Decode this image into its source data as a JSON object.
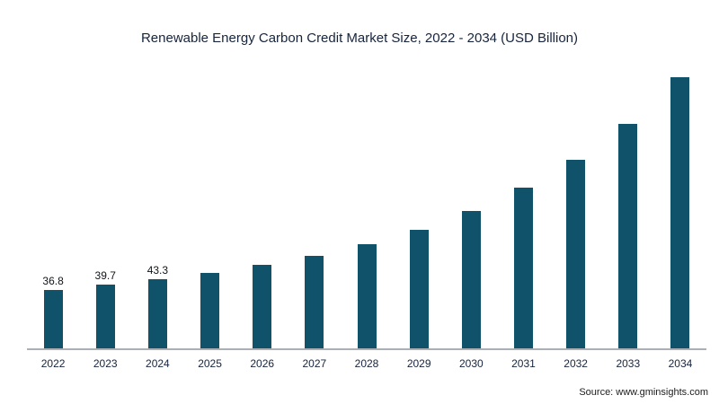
{
  "chart_data": {
    "type": "bar",
    "title": "Renewable Energy Carbon Credit Market Size, 2022 - 2034 (USD Billion)",
    "categories": [
      "2022",
      "2023",
      "2024",
      "2025",
      "2026",
      "2027",
      "2028",
      "2029",
      "2030",
      "2031",
      "2032",
      "2033",
      "2034"
    ],
    "values": [
      36.8,
      39.7,
      43.3,
      47.3,
      52.3,
      58.0,
      65.5,
      74.5,
      86.0,
      100.5,
      118.0,
      141.0,
      170.0
    ],
    "value_labels": [
      "36.8",
      "39.7",
      "43.3",
      "",
      "",
      "",
      "",
      "",
      "",
      "",
      "",
      "",
      ""
    ],
    "bar_color": "#11526b",
    "axis_line_color": "#aab0b6",
    "xlabel": "",
    "ylabel": "",
    "ylim": [
      0,
      175
    ],
    "grid": false,
    "legend": false,
    "legend_position": "none"
  },
  "source": "Source: www.gminsights.com"
}
